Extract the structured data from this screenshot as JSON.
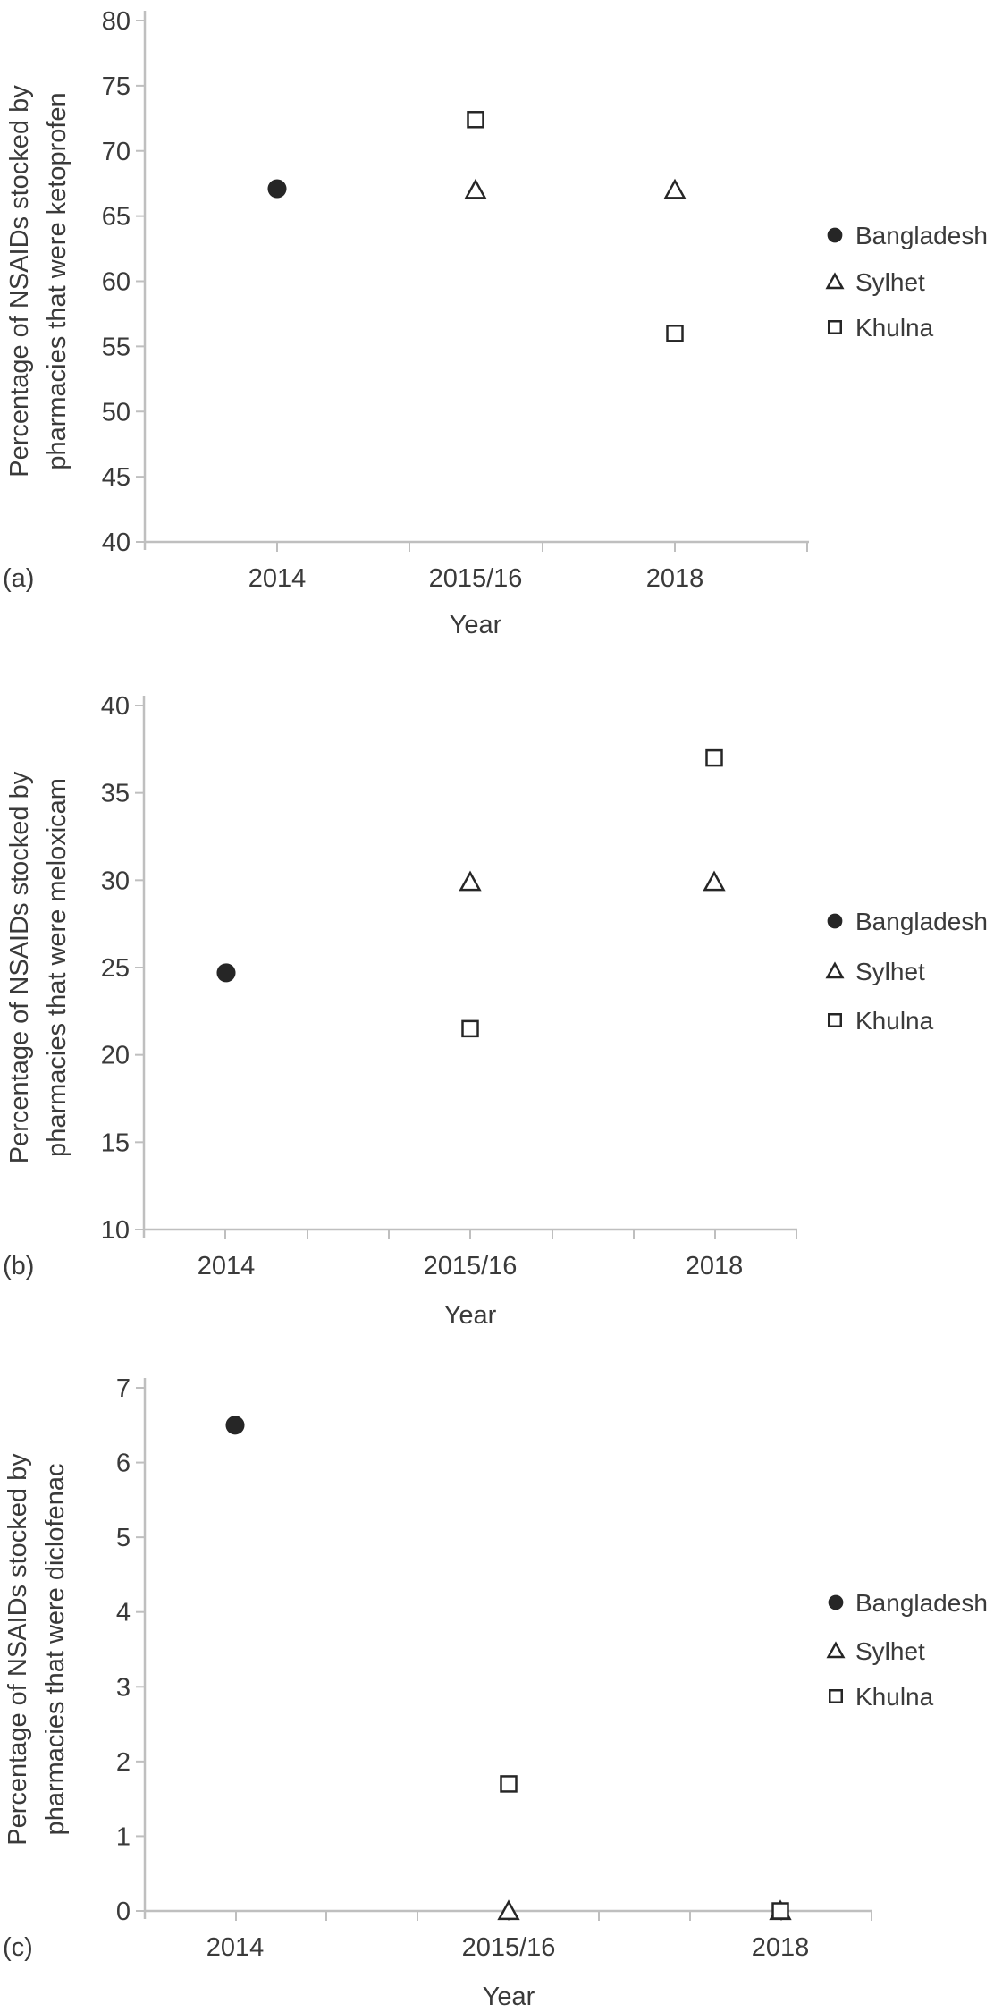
{
  "figure": {
    "background": "#ffffff",
    "text_color": "#3a3a3a",
    "axis_color": "#bfbfbf",
    "marker_color": "#262626",
    "marker_fill_open": "#ffffff"
  },
  "legend": {
    "items": [
      {
        "label": "Bangladesh",
        "marker": "filled-circle"
      },
      {
        "label": "Sylhet",
        "marker": "open-triangle"
      },
      {
        "label": "Khulna",
        "marker": "open-square"
      }
    ]
  },
  "chart_data": [
    {
      "id": "a",
      "type": "scatter",
      "panel_letter": "(a)",
      "ylabel_lines": [
        "Percentage of NSAIDs stocked by",
        "pharmacies that were ketoprofen"
      ],
      "xlabel": "Year",
      "categories": [
        "2014",
        "2015/16",
        "2018"
      ],
      "ylim": [
        40,
        80
      ],
      "yticks": [
        80,
        75,
        70,
        65,
        60,
        55,
        50,
        45,
        40
      ],
      "grid": false,
      "legend_position": "right",
      "series": [
        {
          "name": "Bangladesh",
          "marker": "filled-circle",
          "values": [
            67.1,
            null,
            null
          ]
        },
        {
          "name": "Sylhet",
          "marker": "open-triangle",
          "values": [
            null,
            67.0,
            67.0
          ]
        },
        {
          "name": "Khulna",
          "marker": "open-square",
          "values": [
            null,
            72.4,
            56.0
          ]
        }
      ]
    },
    {
      "id": "b",
      "type": "scatter",
      "panel_letter": "(b)",
      "ylabel_lines": [
        "Percentage of NSAIDs stocked by",
        "pharmacies that were meloxicam"
      ],
      "xlabel": "Year",
      "categories": [
        "2014",
        "2015/16",
        "2018"
      ],
      "ylim": [
        10,
        40
      ],
      "yticks": [
        40,
        35,
        30,
        25,
        20,
        15,
        10
      ],
      "grid": false,
      "legend_position": "right",
      "series": [
        {
          "name": "Bangladesh",
          "marker": "filled-circle",
          "values": [
            24.7,
            null,
            null
          ]
        },
        {
          "name": "Sylhet",
          "marker": "open-triangle",
          "values": [
            null,
            29.9,
            29.9
          ]
        },
        {
          "name": "Khulna",
          "marker": "open-square",
          "values": [
            null,
            21.5,
            37.0
          ]
        }
      ]
    },
    {
      "id": "c",
      "type": "scatter",
      "panel_letter": "(c)",
      "ylabel_lines": [
        "Percentage of NSAIDs stocked by",
        "pharmacies that were diclofenac"
      ],
      "xlabel": "Year",
      "categories": [
        "2014",
        "2015/16",
        "2018"
      ],
      "ylim": [
        0,
        7
      ],
      "yticks": [
        7,
        6,
        5,
        4,
        3,
        2,
        1,
        0
      ],
      "grid": false,
      "legend_position": "right",
      "series": [
        {
          "name": "Bangladesh",
          "marker": "filled-circle",
          "values": [
            6.5,
            null,
            null
          ]
        },
        {
          "name": "Sylhet",
          "marker": "open-triangle",
          "values": [
            null,
            0,
            0
          ]
        },
        {
          "name": "Khulna",
          "marker": "open-square",
          "values": [
            null,
            1.7,
            0
          ]
        }
      ]
    }
  ]
}
